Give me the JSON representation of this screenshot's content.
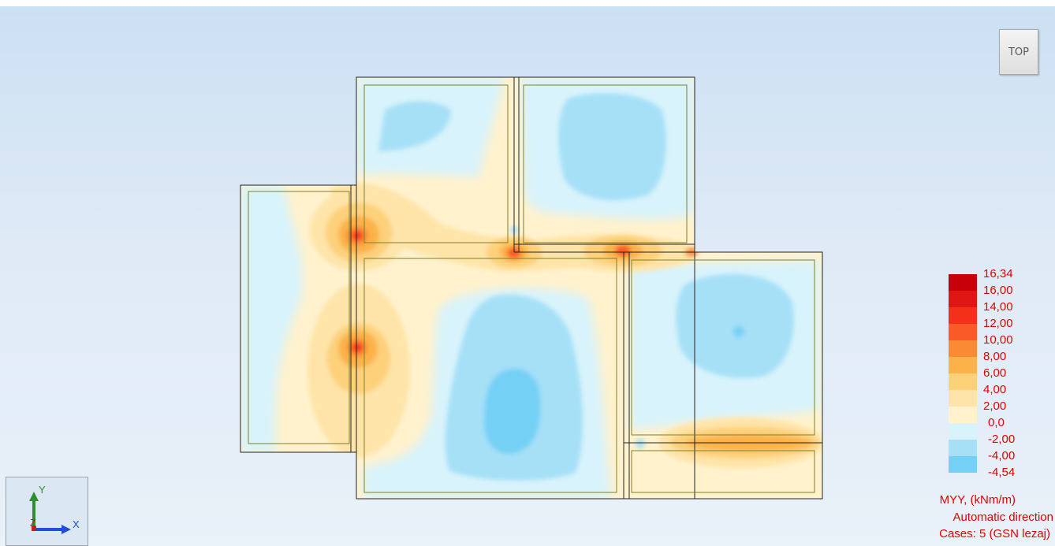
{
  "view_button": {
    "label": "TOP"
  },
  "axes": {
    "y_label": "Y",
    "x_label": "X",
    "z_label": "Z"
  },
  "colors": {
    "legend_text": "#e00000",
    "slab_edge": "#222222",
    "inner_line": "#7f7f2a",
    "background": "#dfeaf6"
  },
  "legend": {
    "entries": [
      {
        "label": "16,34",
        "color": "#c8000a"
      },
      {
        "label": "16,00",
        "color": "#e01612"
      },
      {
        "label": "14,00",
        "color": "#f5301a"
      },
      {
        "label": "12,00",
        "color": "#fa5a26"
      },
      {
        "label": "10,00",
        "color": "#fb8a34"
      },
      {
        "label": "8,00",
        "color": "#fcb24a"
      },
      {
        "label": "6,00",
        "color": "#fdd07a"
      },
      {
        "label": "4,00",
        "color": "#fee4a8"
      },
      {
        "label": "2,00",
        "color": "#fff2cd"
      },
      {
        "label": "0,0",
        "color": "#d8f3fb"
      },
      {
        "label": "-2,00",
        "color": "#a6e0f7"
      },
      {
        "label": "-4,00",
        "color": "#74d0f5"
      },
      {
        "label": "-4,54",
        "color": ""
      }
    ],
    "quantity": "MYY, (kNm/m)",
    "direction": "Automatic direction",
    "cases": "Cases: 5 (GSN lezaj)"
  }
}
